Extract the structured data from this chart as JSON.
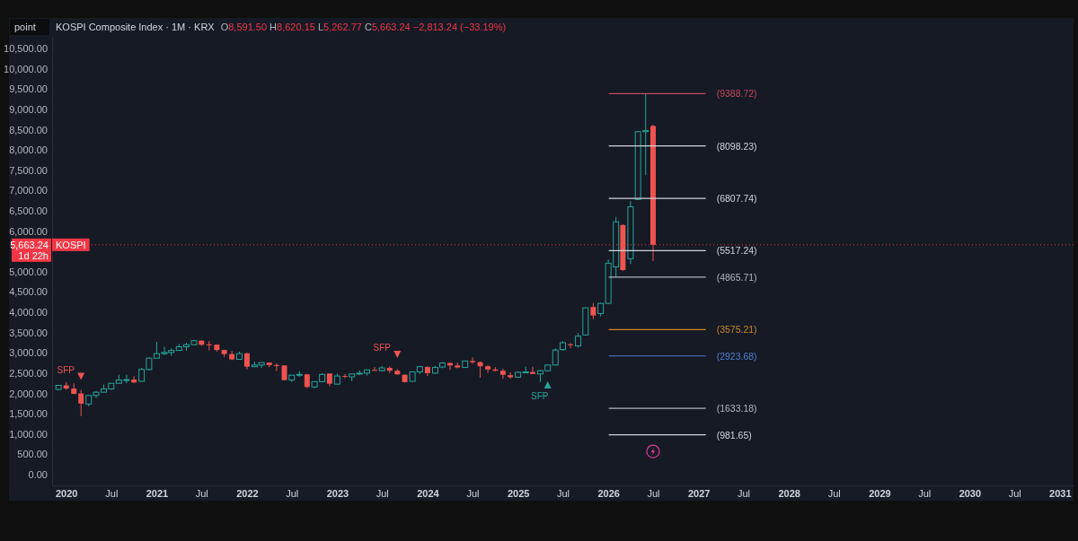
{
  "chart_data": {
    "type": "candlestick",
    "title": "KOSPI Composite Index · 1M · KRX",
    "subtitle": "O8,591.50 H8,620.15 L5,262.77 C5,663.24 −2,813.24 (−33.19%)",
    "ylabel": "point",
    "x": [
      "2019-12",
      "2020-01",
      "2020-02",
      "2020-03",
      "2020-04",
      "2020-05",
      "2020-06",
      "2020-07",
      "2020-08",
      "2020-09",
      "2020-10",
      "2020-11",
      "2020-12",
      "2021-01",
      "2021-02",
      "2021-03",
      "2021-04",
      "2021-05",
      "2021-06",
      "2021-07",
      "2021-08",
      "2021-09",
      "2021-10",
      "2021-11",
      "2021-12",
      "2022-01",
      "2022-02",
      "2022-03",
      "2022-04",
      "2022-05",
      "2022-06",
      "2022-07",
      "2022-08",
      "2022-09",
      "2022-10",
      "2022-11",
      "2022-12",
      "2023-01",
      "2023-02",
      "2023-03",
      "2023-04",
      "2023-05",
      "2023-06",
      "2023-07",
      "2023-08",
      "2023-09",
      "2023-10",
      "2023-11",
      "2023-12",
      "2024-01",
      "2024-02",
      "2024-03",
      "2024-04",
      "2024-05",
      "2024-06",
      "2024-07",
      "2024-08",
      "2024-09",
      "2024-10",
      "2024-11",
      "2024-12",
      "2025-01",
      "2025-02",
      "2025-03",
      "2025-04",
      "2025-05",
      "2025-06",
      "2025-07",
      "2025-08",
      "2025-09",
      "2025-10",
      "2025-11",
      "2025-12",
      "2026-01",
      "2026-02",
      "2026-03",
      "2026-04",
      "2026-05",
      "2026-06",
      "2026-07"
    ],
    "ohlc": [
      [
        2100,
        2210,
        2080,
        2200
      ],
      [
        2200,
        2280,
        2090,
        2120
      ],
      [
        2120,
        2250,
        1980,
        1990
      ],
      [
        2000,
        2090,
        1440,
        1750
      ],
      [
        1740,
        1950,
        1680,
        1950
      ],
      [
        1950,
        2060,
        1890,
        2030
      ],
      [
        2030,
        2220,
        2030,
        2110
      ],
      [
        2110,
        2250,
        2090,
        2250
      ],
      [
        2250,
        2460,
        2240,
        2330
      ],
      [
        2330,
        2460,
        2250,
        2340
      ],
      [
        2340,
        2420,
        2260,
        2270
      ],
      [
        2300,
        2630,
        2290,
        2590
      ],
      [
        2590,
        2880,
        2570,
        2870
      ],
      [
        2870,
        3270,
        2870,
        2980
      ],
      [
        2980,
        3150,
        2950,
        3010
      ],
      [
        3010,
        3110,
        2930,
        3060
      ],
      [
        3060,
        3220,
        3050,
        3150
      ],
      [
        3150,
        3250,
        3050,
        3200
      ],
      [
        3200,
        3320,
        3190,
        3300
      ],
      [
        3300,
        3310,
        3170,
        3200
      ],
      [
        3210,
        3290,
        3060,
        3200
      ],
      [
        3200,
        3210,
        3030,
        3070
      ],
      [
        3070,
        3080,
        2900,
        2970
      ],
      [
        2970,
        3050,
        2820,
        2840
      ],
      [
        2840,
        3030,
        2830,
        2980
      ],
      [
        2990,
        3000,
        2590,
        2660
      ],
      [
        2660,
        2780,
        2650,
        2700
      ],
      [
        2700,
        2760,
        2630,
        2760
      ],
      [
        2760,
        2760,
        2650,
        2700
      ],
      [
        2700,
        2740,
        2550,
        2690
      ],
      [
        2690,
        2690,
        2320,
        2330
      ],
      [
        2330,
        2460,
        2280,
        2450
      ],
      [
        2450,
        2550,
        2410,
        2470
      ],
      [
        2470,
        2480,
        2130,
        2160
      ],
      [
        2160,
        2300,
        2130,
        2290
      ],
      [
        2290,
        2500,
        2290,
        2470
      ],
      [
        2490,
        2490,
        2180,
        2240
      ],
      [
        2230,
        2490,
        2220,
        2430
      ],
      [
        2430,
        2480,
        2380,
        2410
      ],
      [
        2410,
        2480,
        2300,
        2480
      ],
      [
        2480,
        2570,
        2450,
        2500
      ],
      [
        2500,
        2590,
        2440,
        2580
      ],
      [
        2580,
        2650,
        2560,
        2560
      ],
      [
        2560,
        2670,
        2540,
        2630
      ],
      [
        2630,
        2670,
        2500,
        2560
      ],
      [
        2560,
        2600,
        2460,
        2470
      ],
      [
        2460,
        2470,
        2270,
        2280
      ],
      [
        2300,
        2540,
        2290,
        2530
      ],
      [
        2530,
        2670,
        2480,
        2660
      ],
      [
        2650,
        2670,
        2430,
        2500
      ],
      [
        2500,
        2680,
        2490,
        2640
      ],
      [
        2650,
        2770,
        2620,
        2750
      ],
      [
        2750,
        2760,
        2580,
        2690
      ],
      [
        2690,
        2760,
        2620,
        2640
      ],
      [
        2640,
        2810,
        2630,
        2800
      ],
      [
        2800,
        2890,
        2730,
        2770
      ],
      [
        2770,
        2790,
        2390,
        2670
      ],
      [
        2670,
        2700,
        2510,
        2590
      ],
      [
        2590,
        2650,
        2540,
        2560
      ],
      [
        2560,
        2610,
        2360,
        2460
      ],
      [
        2450,
        2520,
        2360,
        2400
      ],
      [
        2400,
        2540,
        2400,
        2520
      ],
      [
        2510,
        2660,
        2510,
        2530
      ],
      [
        2530,
        2660,
        2480,
        2480
      ],
      [
        2480,
        2580,
        2280,
        2560
      ],
      [
        2560,
        2710,
        2540,
        2700
      ],
      [
        2700,
        3110,
        2690,
        3070
      ],
      [
        3080,
        3290,
        3050,
        3250
      ],
      [
        3210,
        3240,
        3120,
        3190
      ],
      [
        3170,
        3490,
        3130,
        3410
      ],
      [
        3440,
        4120,
        3430,
        4110
      ],
      [
        4130,
        4230,
        3830,
        3920
      ],
      [
        3970,
        4230,
        3900,
        4220
      ],
      [
        4220,
        5300,
        4210,
        5210
      ],
      [
        5120,
        6350,
        4870,
        6230
      ],
      [
        6150,
        6170,
        5020,
        5040
      ],
      [
        5320,
        6740,
        5190,
        6600
      ],
      [
        6780,
        8460,
        6770,
        8450
      ],
      [
        8450,
        9388.72,
        7380,
        8476.48
      ],
      [
        8591.5,
        8620.15,
        5262.77,
        5663.24
      ]
    ],
    "colors": [
      "#26a69a",
      "#ef5350",
      "#ef5350",
      "#ef5350",
      "#26a69a",
      "#26a69a",
      "#26a69a",
      "#26a69a",
      "#26a69a",
      "#26a69a",
      "#ef5350",
      "#26a69a",
      "#26a69a",
      "#26a69a",
      "#26a69a",
      "#26a69a",
      "#26a69a",
      "#26a69a",
      "#26a69a",
      "#ef5350",
      "#ef5350",
      "#ef5350",
      "#ef5350",
      "#ef5350",
      "#26a69a",
      "#ef5350",
      "#26a69a",
      "#26a69a",
      "#ef5350",
      "#ef5350",
      "#ef5350",
      "#26a69a",
      "#26a69a",
      "#ef5350",
      "#26a69a",
      "#26a69a",
      "#ef5350",
      "#26a69a",
      "#ef5350",
      "#26a69a",
      "#26a69a",
      "#26a69a",
      "#ef5350",
      "#26a69a",
      "#ef5350",
      "#ef5350",
      "#ef5350",
      "#26a69a",
      "#26a69a",
      "#ef5350",
      "#26a69a",
      "#26a69a",
      "#ef5350",
      "#ef5350",
      "#26a69a",
      "#ef5350",
      "#ef5350",
      "#ef5350",
      "#ef5350",
      "#ef5350",
      "#ef5350",
      "#26a69a",
      "#26a69a",
      "#ef5350",
      "#26a69a",
      "#26a69a",
      "#26a69a",
      "#26a69a",
      "#ef5350",
      "#26a69a",
      "#26a69a",
      "#ef5350",
      "#26a69a",
      "#26a69a",
      "#26a69a",
      "#ef5350",
      "#26a69a",
      "#26a69a",
      "#26a69a",
      "#ef5350"
    ],
    "xlim": [
      "2019-11-05",
      "2031-02-25"
    ],
    "xticks": [
      {
        "value": "2020-01",
        "label": "2020"
      },
      {
        "value": "2020-07",
        "label": "Jul"
      },
      {
        "value": "2021-01",
        "label": "2021"
      },
      {
        "value": "2021-07",
        "label": "Jul"
      },
      {
        "value": "2022-01",
        "label": "2022"
      },
      {
        "value": "2022-07",
        "label": "Jul"
      },
      {
        "value": "2023-01",
        "label": "2023"
      },
      {
        "value": "2023-07",
        "label": "Jul"
      },
      {
        "value": "2024-01",
        "label": "2024"
      },
      {
        "value": "2024-07",
        "label": "Jul"
      },
      {
        "value": "2025-01",
        "label": "2025"
      },
      {
        "value": "2025-07",
        "label": "Jul"
      },
      {
        "value": "2026-01",
        "label": "2026"
      },
      {
        "value": "2026-07",
        "label": "Jul"
      },
      {
        "value": "2027-01",
        "label": "2027"
      },
      {
        "value": "2027-07",
        "label": "Jul"
      },
      {
        "value": "2028-01",
        "label": "2028"
      },
      {
        "value": "2028-07",
        "label": "Jul"
      },
      {
        "value": "2029-01",
        "label": "2029"
      },
      {
        "value": "2029-07",
        "label": "Jul"
      },
      {
        "value": "2030-01",
        "label": "2030"
      },
      {
        "value": "2030-07",
        "label": "Jul"
      },
      {
        "value": "2031-01",
        "label": "2031"
      }
    ],
    "ylim": [
      -270,
      10800
    ],
    "yticks": [
      {
        "value": 0,
        "label": "0.00"
      },
      {
        "value": 500,
        "label": "500.00"
      },
      {
        "value": 1000,
        "label": "1,000.00"
      },
      {
        "value": 1500,
        "label": "1,500.00"
      },
      {
        "value": 2000,
        "label": "2,000.00"
      },
      {
        "value": 2500,
        "label": "2,500.00"
      },
      {
        "value": 3000,
        "label": "3,000.00"
      },
      {
        "value": 3500,
        "label": "3,500.00"
      },
      {
        "value": 4000,
        "label": "4,000.00"
      },
      {
        "value": 4500,
        "label": "4,500.00"
      },
      {
        "value": 5000,
        "label": "5,000.00"
      },
      {
        "value": 6000,
        "label": "6,000.00"
      },
      {
        "value": 6500,
        "label": "6,500.00"
      },
      {
        "value": 7000,
        "label": "7,000.00"
      },
      {
        "value": 7500,
        "label": "7,500.00"
      },
      {
        "value": 8000,
        "label": "8,000.00"
      },
      {
        "value": 8500,
        "label": "8,500.00"
      },
      {
        "value": 9000,
        "label": "9,000.00"
      },
      {
        "value": 9500,
        "label": "9,500.00"
      },
      {
        "value": 10000,
        "label": "10,000.00"
      },
      {
        "value": 10500,
        "label": "10,500.00"
      }
    ],
    "ref_lines": [
      {
        "axis": "y",
        "value": 5663.24,
        "label": "KOSPI",
        "color": "#f23645",
        "line_style": "dotted"
      },
      {
        "axis": "y",
        "value": 9388.72,
        "label": "(9388.72)",
        "color": "#c2485a"
      },
      {
        "axis": "y",
        "value": 8098.23,
        "label": "(8098.23)",
        "color": "#d1d4dc"
      },
      {
        "axis": "y",
        "value": 6807.74,
        "label": "(6807.74)",
        "color": "#d1d4dc"
      },
      {
        "axis": "y",
        "value": 5517.24,
        "label": "(5517.24)",
        "color": "#d1d4dc"
      },
      {
        "axis": "y",
        "value": 4865.71,
        "label": "(4865.71)",
        "color": "#b2b5be"
      },
      {
        "axis": "y",
        "value": 3575.21,
        "label": "(3575.21)",
        "color": "#c8882a"
      },
      {
        "axis": "y",
        "value": 2923.68,
        "label": "(2923.68)",
        "color": "#4f7fd0"
      },
      {
        "axis": "y",
        "value": 1633.18,
        "label": "(1633.18)",
        "color": "#b2b5be"
      },
      {
        "axis": "y",
        "value": 981.65,
        "label": "(981.65)",
        "color": "#d1d4dc"
      }
    ],
    "annotations": [
      "5,663.24",
      "1d 22h",
      {
        "text": "SFP",
        "x": "2020-03",
        "y": 2420
      },
      {
        "text": "SFP",
        "x": "2023-09",
        "y": 2960
      },
      {
        "text": "SFP",
        "x": "2025-05",
        "y": 2210
      }
    ]
  }
}
